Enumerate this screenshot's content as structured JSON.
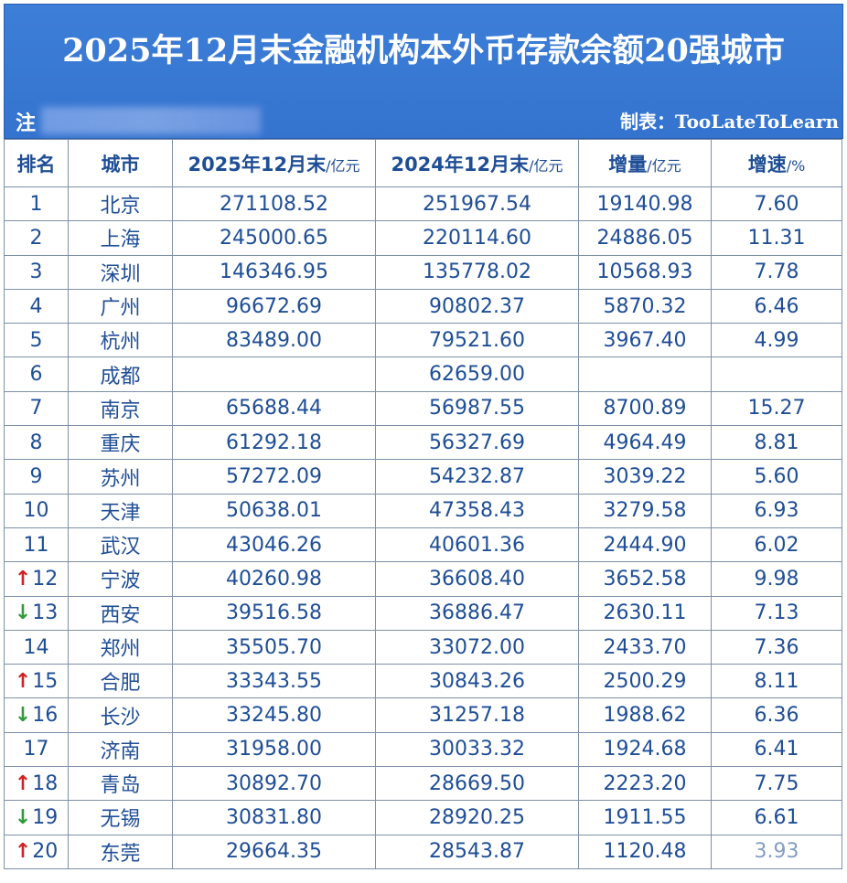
{
  "title": "2025年12月末金融机构本外币存款余额20强城市",
  "note_label": "注",
  "credit": "制表：TooLateToLearn",
  "columns": [
    {
      "label": "排名",
      "unit": ""
    },
    {
      "label": "城市",
      "unit": ""
    },
    {
      "label": "2025年12月末",
      "unit": "/亿元"
    },
    {
      "label": "2024年12月末",
      "unit": "/亿元"
    },
    {
      "label": "增量",
      "unit": "/亿元"
    },
    {
      "label": "增速",
      "unit": "/%"
    }
  ],
  "rows": [
    {
      "rank": "1",
      "trend": "",
      "city": "北京",
      "y2025": "271108.52",
      "y2024": "251967.54",
      "inc": "19140.98",
      "rate": "7.60"
    },
    {
      "rank": "2",
      "trend": "",
      "city": "上海",
      "y2025": "245000.65",
      "y2024": "220114.60",
      "inc": "24886.05",
      "rate": "11.31"
    },
    {
      "rank": "3",
      "trend": "",
      "city": "深圳",
      "y2025": "146346.95",
      "y2024": "135778.02",
      "inc": "10568.93",
      "rate": "7.78"
    },
    {
      "rank": "4",
      "trend": "",
      "city": "广州",
      "y2025": "96672.69",
      "y2024": "90802.37",
      "inc": "5870.32",
      "rate": "6.46"
    },
    {
      "rank": "5",
      "trend": "",
      "city": "杭州",
      "y2025": "83489.00",
      "y2024": "79521.60",
      "inc": "3967.40",
      "rate": "4.99"
    },
    {
      "rank": "6",
      "trend": "",
      "city": "成都",
      "y2025": "",
      "y2024": "62659.00",
      "inc": "",
      "rate": ""
    },
    {
      "rank": "7",
      "trend": "",
      "city": "南京",
      "y2025": "65688.44",
      "y2024": "56987.55",
      "inc": "8700.89",
      "rate": "15.27"
    },
    {
      "rank": "8",
      "trend": "",
      "city": "重庆",
      "y2025": "61292.18",
      "y2024": "56327.69",
      "inc": "4964.49",
      "rate": "8.81"
    },
    {
      "rank": "9",
      "trend": "",
      "city": "苏州",
      "y2025": "57272.09",
      "y2024": "54232.87",
      "inc": "3039.22",
      "rate": "5.60"
    },
    {
      "rank": "10",
      "trend": "",
      "city": "天津",
      "y2025": "50638.01",
      "y2024": "47358.43",
      "inc": "3279.58",
      "rate": "6.93"
    },
    {
      "rank": "11",
      "trend": "",
      "city": "武汉",
      "y2025": "43046.26",
      "y2024": "40601.36",
      "inc": "2444.90",
      "rate": "6.02"
    },
    {
      "rank": "12",
      "trend": "↑",
      "city": "宁波",
      "y2025": "40260.98",
      "y2024": "36608.40",
      "inc": "3652.58",
      "rate": "9.98"
    },
    {
      "rank": "13",
      "trend": "↓",
      "city": "西安",
      "y2025": "39516.58",
      "y2024": "36886.47",
      "inc": "2630.11",
      "rate": "7.13"
    },
    {
      "rank": "14",
      "trend": "",
      "city": "郑州",
      "y2025": "35505.70",
      "y2024": "33072.00",
      "inc": "2433.70",
      "rate": "7.36"
    },
    {
      "rank": "15",
      "trend": "↑",
      "city": "合肥",
      "y2025": "33343.55",
      "y2024": "30843.26",
      "inc": "2500.29",
      "rate": "8.11"
    },
    {
      "rank": "16",
      "trend": "↓",
      "city": "长沙",
      "y2025": "33245.80",
      "y2024": "31257.18",
      "inc": "1988.62",
      "rate": "6.36"
    },
    {
      "rank": "17",
      "trend": "",
      "city": "济南",
      "y2025": "31958.00",
      "y2024": "30033.32",
      "inc": "1924.68",
      "rate": "6.41"
    },
    {
      "rank": "18",
      "trend": "↑",
      "city": "青岛",
      "y2025": "30892.70",
      "y2024": "28669.50",
      "inc": "2223.20",
      "rate": "7.75"
    },
    {
      "rank": "19",
      "trend": "↓",
      "city": "无锡",
      "y2025": "30831.80",
      "y2024": "28920.25",
      "inc": "1911.55",
      "rate": "6.61"
    },
    {
      "rank": "20",
      "trend": "↑",
      "city": "东莞",
      "y2025": "29664.35",
      "y2024": "28543.87",
      "inc": "1120.48",
      "rate": "3.93"
    }
  ],
  "colors": {
    "header_bg": "#3a7bd5",
    "cell_text": "#1f4e96",
    "arrow_up": "#d32020",
    "arrow_down": "#2f9b3a",
    "grid": "#7d8fa8"
  }
}
